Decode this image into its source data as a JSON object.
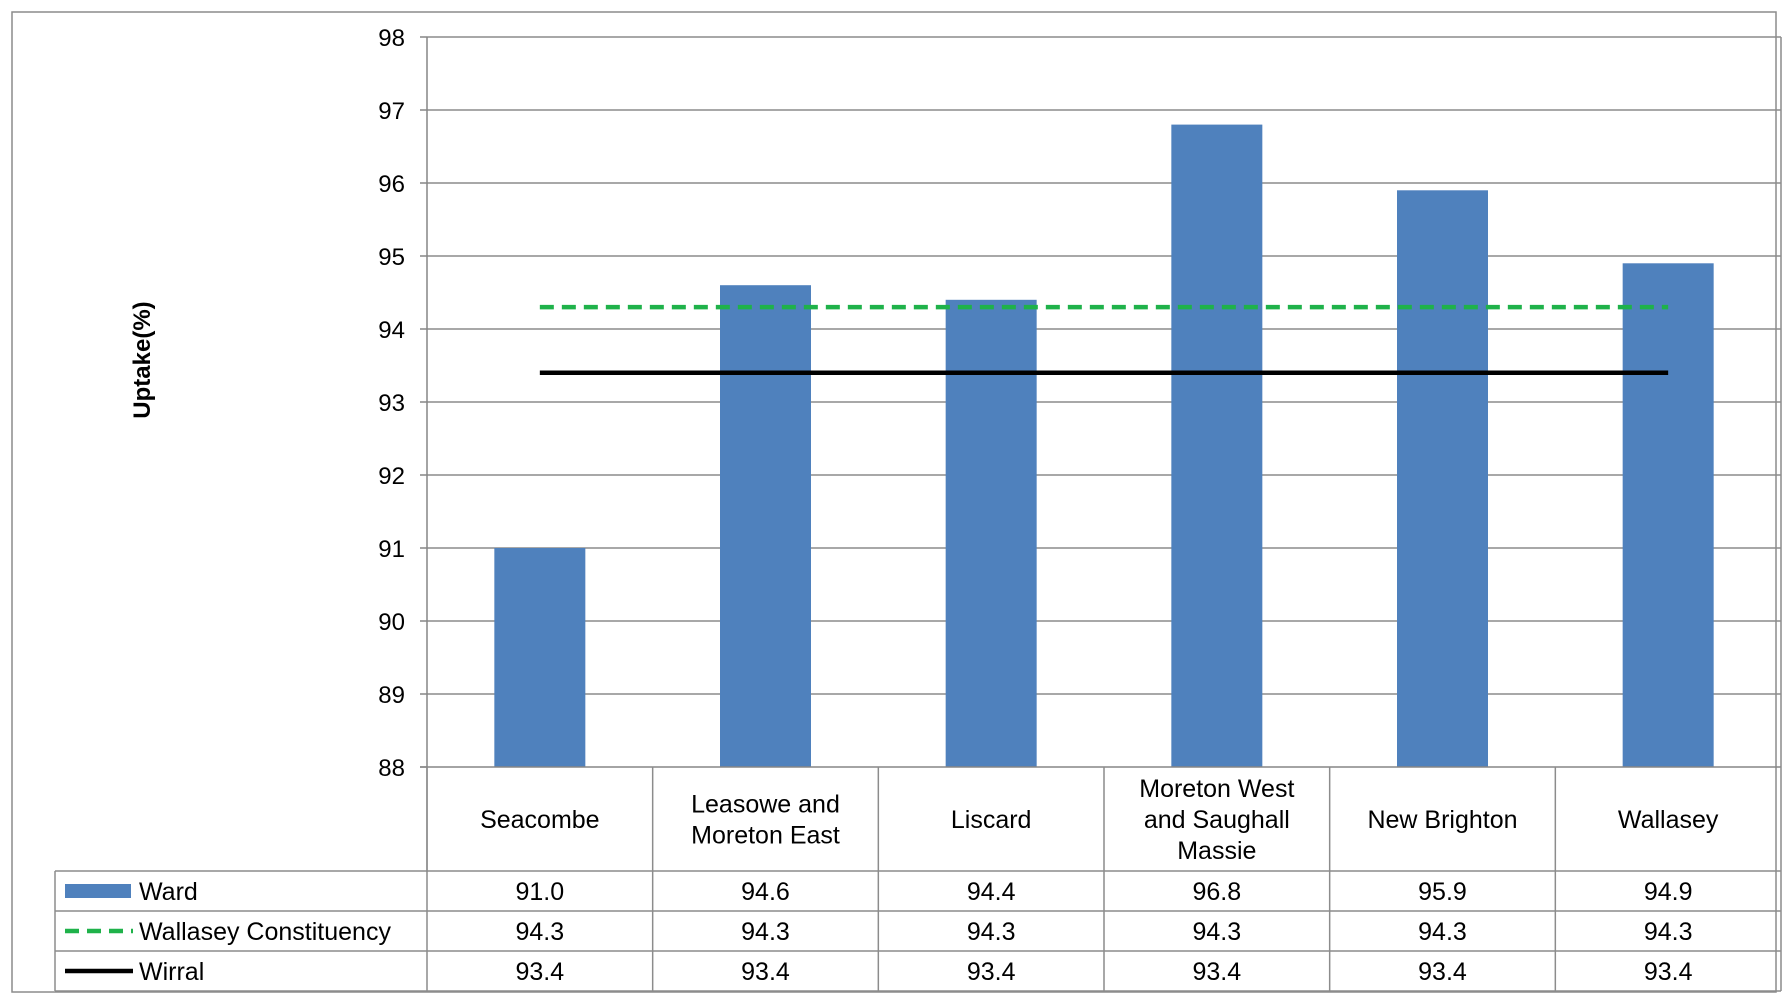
{
  "colors": {
    "ward": "#4F81BD",
    "constituency": "#1FB24A",
    "wirral": "#000000",
    "grid": "#8C8C8C",
    "axis": "#868686",
    "frame": "#8C8C8C"
  },
  "chart_data": {
    "type": "bar",
    "title": "",
    "xlabel": "",
    "ylabel": "Uptake(%)",
    "ylim": [
      88,
      98
    ],
    "ystep": 1,
    "grid": true,
    "legend_placement": "data-table",
    "categories": [
      [
        "Seacombe"
      ],
      [
        "Leasowe and",
        "Moreton East"
      ],
      [
        "Liscard"
      ],
      [
        "Moreton West",
        "and Saughall",
        "Massie"
      ],
      [
        "New Brighton"
      ],
      [
        "Wallasey"
      ]
    ],
    "series": [
      {
        "name": "Ward",
        "kind": "bar",
        "values": [
          91.0,
          94.6,
          94.4,
          96.8,
          95.9,
          94.9
        ],
        "labels": [
          "91.0",
          "94.6",
          "94.4",
          "96.8",
          "95.9",
          "94.9"
        ]
      },
      {
        "name": "Wallasey Constituency",
        "kind": "dashed-line",
        "values": [
          94.3,
          94.3,
          94.3,
          94.3,
          94.3,
          94.3
        ],
        "labels": [
          "94.3",
          "94.3",
          "94.3",
          "94.3",
          "94.3",
          "94.3"
        ]
      },
      {
        "name": "Wirral",
        "kind": "line",
        "values": [
          93.4,
          93.4,
          93.4,
          93.4,
          93.4,
          93.4
        ],
        "labels": [
          "93.4",
          "93.4",
          "93.4",
          "93.4",
          "93.4",
          "93.4"
        ]
      }
    ]
  }
}
